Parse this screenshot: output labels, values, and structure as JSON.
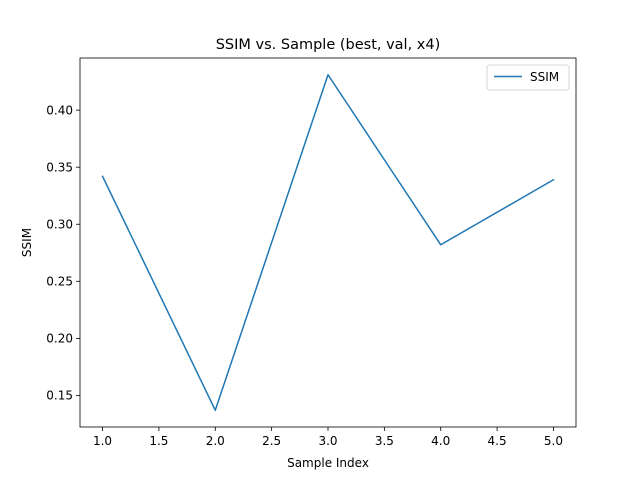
{
  "chart_data": {
    "type": "line",
    "title": "SSIM vs. Sample (best, val, x4)",
    "xlabel": "Sample Index",
    "ylabel": "SSIM",
    "x": [
      1,
      2,
      3,
      4,
      5
    ],
    "series": [
      {
        "name": "SSIM",
        "values": [
          0.342,
          0.137,
          0.431,
          0.282,
          0.339
        ],
        "color": "#1f77b4"
      }
    ],
    "xlim": [
      0.8,
      5.2
    ],
    "ylim": [
      0.1223,
      0.4457
    ],
    "xticks": [
      "1.0",
      "1.5",
      "2.0",
      "2.5",
      "3.0",
      "3.5",
      "4.0",
      "4.5",
      "5.0"
    ],
    "yticks": [
      "0.15",
      "0.20",
      "0.25",
      "0.30",
      "0.35",
      "0.40"
    ],
    "grid": false,
    "legend_position": "top-right"
  }
}
